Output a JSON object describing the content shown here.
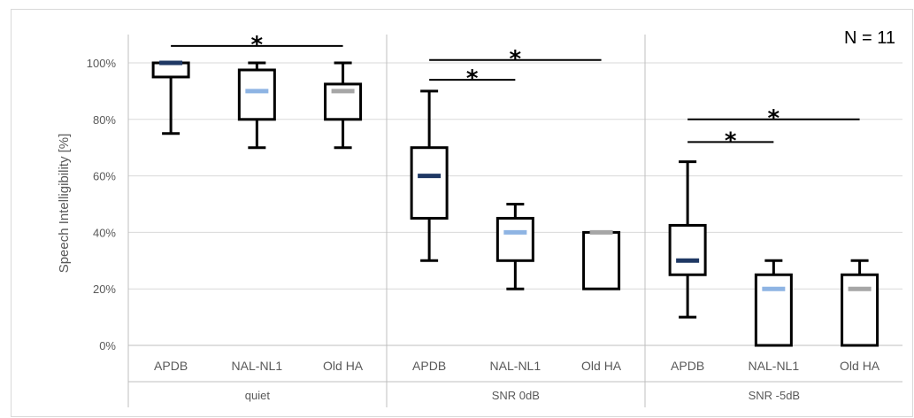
{
  "chart_data": {
    "type": "boxplot",
    "ylabel": "Speech Intelligibility [%]",
    "ylim": [
      0,
      100
    ],
    "yticks": [
      "0%",
      "20%",
      "40%",
      "60%",
      "80%",
      "100%"
    ],
    "ytick_values": [
      0,
      20,
      40,
      60,
      80,
      100
    ],
    "grid": true,
    "annotation": "N = 11",
    "groups": [
      {
        "name": "quiet",
        "boxes": [
          {
            "label": "APDB",
            "min": 75,
            "q1": 95,
            "median": 100,
            "q3": 100,
            "max": 100,
            "median_color": "#1f3864"
          },
          {
            "label": "NAL-NL1",
            "min": 70,
            "q1": 80,
            "median": 90,
            "q3": 97.5,
            "max": 100,
            "median_color": "#8eb4e3"
          },
          {
            "label": "Old HA",
            "min": 70,
            "q1": 80,
            "median": 90,
            "q3": 92.5,
            "max": 100,
            "median_color": "#a6a6a6"
          }
        ],
        "significance": [
          {
            "from": 0,
            "to": 2,
            "y": 106,
            "label": "*"
          }
        ]
      },
      {
        "name": "SNR 0dB",
        "boxes": [
          {
            "label": "APDB",
            "min": 30,
            "q1": 45,
            "median": 60,
            "q3": 70,
            "max": 90,
            "median_color": "#1f3864"
          },
          {
            "label": "NAL-NL1",
            "min": 20,
            "q1": 30,
            "median": 40,
            "q3": 45,
            "max": 50,
            "median_color": "#8eb4e3"
          },
          {
            "label": "Old HA",
            "min": 20,
            "q1": 20,
            "median": 40,
            "q3": 40,
            "max": 40,
            "median_color": "#a6a6a6"
          }
        ],
        "significance": [
          {
            "from": 0,
            "to": 2,
            "y": 101,
            "label": "*"
          },
          {
            "from": 0,
            "to": 1,
            "y": 94,
            "label": "*"
          }
        ]
      },
      {
        "name": "SNR -5dB",
        "boxes": [
          {
            "label": "APDB",
            "min": 10,
            "q1": 25,
            "median": 30,
            "q3": 42.5,
            "max": 65,
            "median_color": "#1f3864"
          },
          {
            "label": "NAL-NL1",
            "min": 0,
            "q1": 0,
            "median": 20,
            "q3": 25,
            "max": 30,
            "median_color": "#8eb4e3"
          },
          {
            "label": "Old HA",
            "min": 0,
            "q1": 0,
            "median": 20,
            "q3": 25,
            "max": 30,
            "median_color": "#a6a6a6"
          }
        ],
        "significance": [
          {
            "from": 0,
            "to": 2,
            "y": 80,
            "label": "*"
          },
          {
            "from": 0,
            "to": 1,
            "y": 72,
            "label": "*"
          }
        ]
      }
    ]
  }
}
